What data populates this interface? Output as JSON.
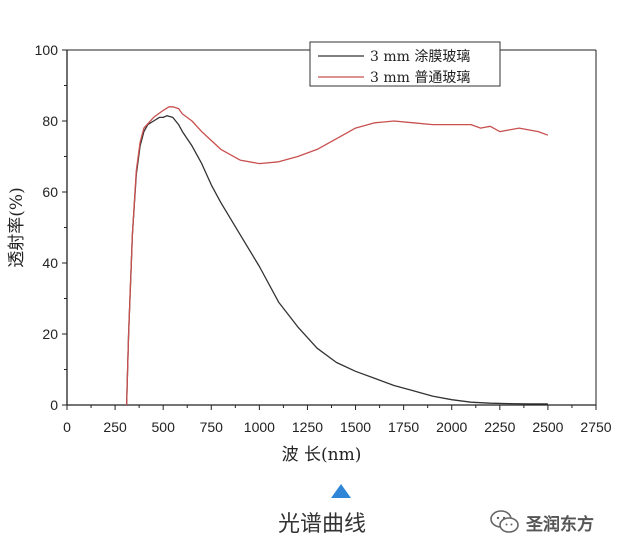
{
  "chart_data": {
    "type": "line",
    "title": "",
    "xlabel": "波  长(nm)",
    "ylabel": "透射率(%)",
    "xlim": [
      0,
      2750
    ],
    "ylim": [
      0,
      100
    ],
    "x_ticks": [
      0,
      250,
      500,
      750,
      1000,
      1250,
      1500,
      1750,
      2000,
      2250,
      2500,
      2750
    ],
    "y_ticks": [
      0,
      20,
      40,
      60,
      80,
      100
    ],
    "grid": false,
    "legend_position": "top-right",
    "series": [
      {
        "name": "3 mm 涂膜玻璃",
        "color": "#333333",
        "x": [
          310,
          320,
          340,
          360,
          380,
          400,
          420,
          450,
          480,
          500,
          520,
          550,
          580,
          600,
          650,
          700,
          750,
          800,
          900,
          1000,
          1100,
          1200,
          1300,
          1400,
          1500,
          1600,
          1700,
          1800,
          1900,
          2000,
          2100,
          2200,
          2300,
          2400,
          2500
        ],
        "y": [
          0,
          20,
          48,
          65,
          73,
          77,
          79,
          80,
          81,
          81,
          81.5,
          81,
          79,
          77,
          73,
          68,
          62,
          57,
          48,
          39,
          29,
          22,
          16,
          12,
          9.5,
          7.5,
          5.5,
          4,
          2.5,
          1.5,
          0.8,
          0.5,
          0.4,
          0.3,
          0.3
        ]
      },
      {
        "name": "3 mm 普通玻璃",
        "color": "#c8504f",
        "x": [
          310,
          320,
          340,
          360,
          380,
          400,
          450,
          500,
          530,
          550,
          580,
          600,
          650,
          700,
          750,
          800,
          900,
          1000,
          1100,
          1200,
          1300,
          1400,
          1500,
          1600,
          1700,
          1800,
          1900,
          2000,
          2100,
          2150,
          2200,
          2250,
          2300,
          2350,
          2400,
          2450,
          2500
        ],
        "y": [
          0,
          20,
          48,
          66,
          74,
          78,
          81,
          83,
          84,
          84,
          83.5,
          82,
          80,
          77,
          74.5,
          72,
          69,
          68,
          68.5,
          70,
          72,
          75,
          78,
          79.5,
          80,
          79.5,
          79,
          79,
          79,
          78,
          78.5,
          77,
          77.5,
          78,
          77.5,
          77,
          76
        ]
      }
    ]
  },
  "caption": {
    "text": "光谱曲线"
  },
  "watermark": {
    "text": "圣润东方",
    "icon": "wechat-icon"
  }
}
